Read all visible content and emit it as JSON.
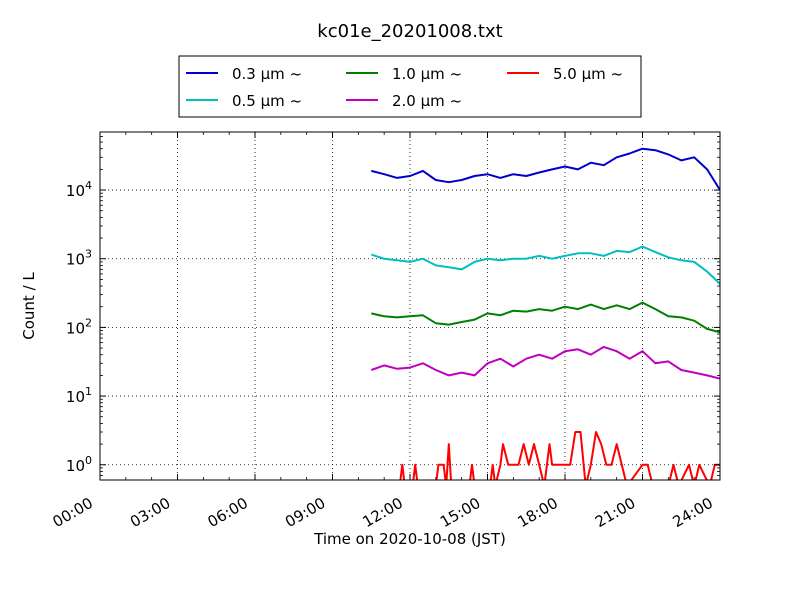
{
  "chart_data": {
    "type": "line",
    "title": "kc01e_20201008.txt",
    "xlabel": "Time on 2020-10-08 (JST)",
    "ylabel": "Count / L",
    "yscale": "log",
    "xlim": [
      0,
      24
    ],
    "ylim": [
      0.6,
      70000
    ],
    "x_ticks": [
      0,
      3,
      6,
      9,
      12,
      15,
      18,
      21,
      24
    ],
    "x_tick_labels": [
      "00:00",
      "03:00",
      "06:00",
      "09:00",
      "12:00",
      "15:00",
      "18:00",
      "21:00",
      "24:00"
    ],
    "y_ticks": [
      1,
      10,
      100,
      1000,
      10000
    ],
    "y_tick_labels": [
      "10^0",
      "10^1",
      "10^2",
      "10^3",
      "10^4"
    ],
    "grid": true,
    "legend_position": "top",
    "series": [
      {
        "name": "0.3 μm ~",
        "color": "#0000cc",
        "x": [
          10.5,
          11.0,
          11.5,
          12.0,
          12.5,
          13.0,
          13.5,
          14.0,
          14.5,
          15.0,
          15.5,
          16.0,
          16.5,
          17.0,
          17.5,
          18.0,
          18.5,
          19.0,
          19.5,
          20.0,
          20.5,
          21.0,
          21.5,
          22.0,
          22.5,
          23.0,
          23.5,
          24.0
        ],
        "values": [
          19000,
          17000,
          15000,
          16000,
          19000,
          14000,
          13000,
          14000,
          16000,
          17000,
          15000,
          17000,
          16000,
          18000,
          20000,
          22000,
          20000,
          25000,
          23000,
          30000,
          34000,
          40000,
          38000,
          33000,
          27000,
          30000,
          20000,
          10000
        ]
      },
      {
        "name": "0.5 μm ~",
        "color": "#00bfbf",
        "x": [
          10.5,
          11.0,
          11.5,
          12.0,
          12.5,
          13.0,
          13.5,
          14.0,
          14.5,
          15.0,
          15.5,
          16.0,
          16.5,
          17.0,
          17.5,
          18.0,
          18.5,
          19.0,
          19.5,
          20.0,
          20.5,
          21.0,
          21.5,
          22.0,
          22.5,
          23.0,
          23.5,
          24.0
        ],
        "values": [
          1150,
          1000,
          950,
          900,
          1000,
          800,
          750,
          700,
          900,
          1000,
          950,
          1000,
          1000,
          1100,
          1000,
          1100,
          1200,
          1200,
          1100,
          1300,
          1250,
          1500,
          1250,
          1050,
          950,
          900,
          650,
          430
        ]
      },
      {
        "name": "1.0 μm ~",
        "color": "#008000",
        "x": [
          10.5,
          11.0,
          11.5,
          12.0,
          12.5,
          13.0,
          13.5,
          14.0,
          14.5,
          15.0,
          15.5,
          16.0,
          16.5,
          17.0,
          17.5,
          18.0,
          18.5,
          19.0,
          19.5,
          20.0,
          20.5,
          21.0,
          21.5,
          22.0,
          22.5,
          23.0,
          23.5,
          24.0
        ],
        "values": [
          160,
          145,
          140,
          145,
          150,
          115,
          110,
          120,
          130,
          160,
          150,
          175,
          170,
          185,
          175,
          200,
          185,
          215,
          185,
          210,
          185,
          230,
          185,
          145,
          140,
          125,
          95,
          85
        ]
      },
      {
        "name": "2.0 μm ~",
        "color": "#bf00bf",
        "x": [
          10.5,
          11.0,
          11.5,
          12.0,
          12.5,
          13.0,
          13.5,
          14.0,
          14.5,
          15.0,
          15.5,
          16.0,
          16.5,
          17.0,
          17.5,
          18.0,
          18.5,
          19.0,
          19.5,
          20.0,
          20.5,
          21.0,
          21.5,
          22.0,
          22.5,
          23.0,
          23.5,
          24.0
        ],
        "values": [
          24,
          28,
          25,
          26,
          30,
          24,
          20,
          22,
          20,
          30,
          35,
          27,
          35,
          40,
          35,
          45,
          48,
          40,
          52,
          45,
          35,
          45,
          30,
          32,
          24,
          22,
          20,
          18
        ]
      },
      {
        "name": "5.0 μm ~",
        "color": "#ff0000",
        "x": [
          11.6,
          11.7,
          11.8,
          12.1,
          12.2,
          12.3,
          12.4,
          13.0,
          13.1,
          13.2,
          13.3,
          13.4,
          13.5,
          13.6,
          14.3,
          14.4,
          14.5,
          15.1,
          15.2,
          15.3,
          15.5,
          15.6,
          15.8,
          16.0,
          16.2,
          16.4,
          16.6,
          16.8,
          17.0,
          17.2,
          17.4,
          17.5,
          17.7,
          18.2,
          18.4,
          18.6,
          18.8,
          19.0,
          19.2,
          19.4,
          19.6,
          19.8,
          20.0,
          20.2,
          20.4,
          21.0,
          21.2,
          21.4,
          22.0,
          22.2,
          22.4,
          22.8,
          23.0,
          23.2,
          23.6,
          23.8,
          24.0
        ],
        "values": [
          0,
          1,
          0,
          0,
          1,
          0,
          0,
          0,
          1,
          1,
          1,
          0,
          2,
          0,
          0,
          1,
          0,
          0,
          1,
          0,
          1,
          2,
          1,
          1,
          1,
          2,
          1,
          2,
          1,
          0,
          2,
          1,
          1,
          1,
          3,
          3,
          0,
          1,
          3,
          2,
          1,
          1,
          2,
          1,
          0,
          1,
          1,
          0,
          0,
          1,
          0,
          1,
          0,
          1,
          0,
          1,
          1
        ]
      }
    ]
  }
}
